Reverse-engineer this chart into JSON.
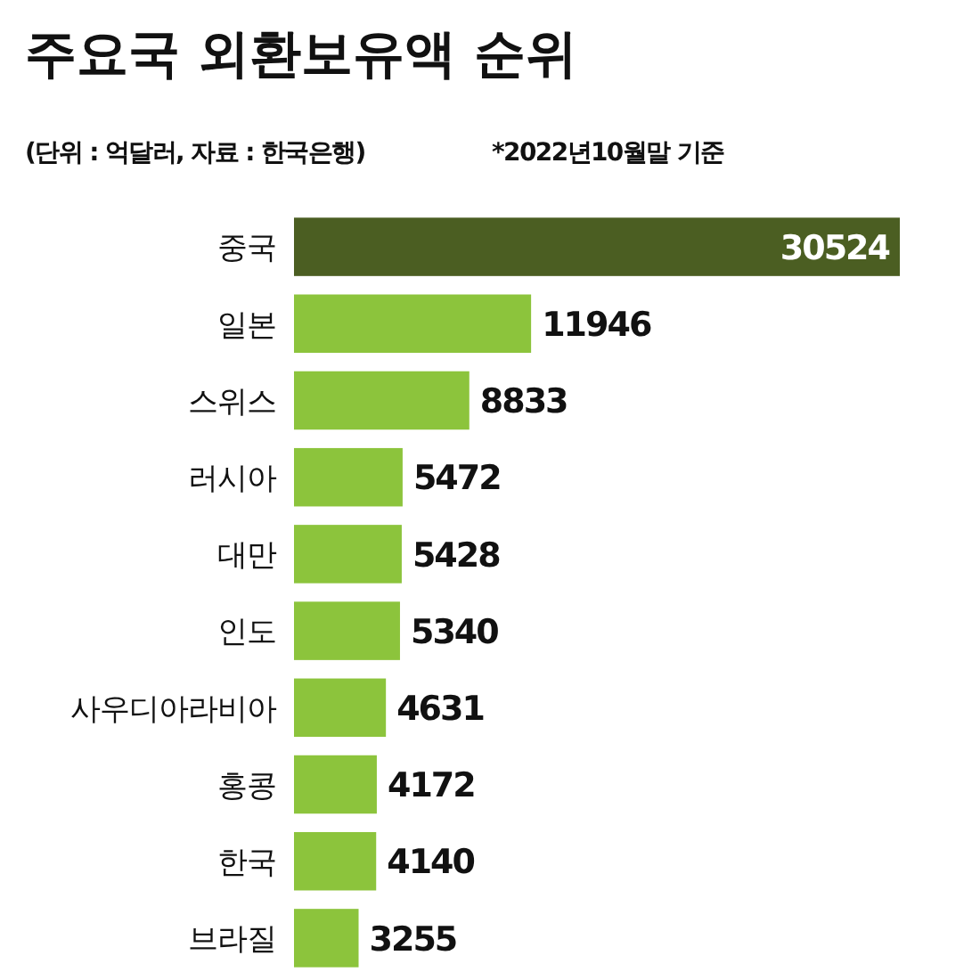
{
  "chart_data": {
    "type": "bar",
    "orientation": "horizontal",
    "title": "주요국 외환보유액 순위",
    "subtitle": "(단위 : 억달러, 자료 : 한국은행)",
    "annotations": [
      "*2022년10월말 기준"
    ],
    "categories": [
      "중국",
      "일본",
      "스위스",
      "러시아",
      "대만",
      "인도",
      "사우디아라비아",
      "홍콩",
      "한국",
      "브라질"
    ],
    "values": [
      30524,
      11946,
      8833,
      5472,
      5428,
      5340,
      4631,
      4172,
      4140,
      3255
    ],
    "colors": [
      "#4b5e22",
      "#8cc43c",
      "#8cc43c",
      "#8cc43c",
      "#8cc43c",
      "#8cc43c",
      "#8cc43c",
      "#8cc43c",
      "#8cc43c",
      "#8cc43c"
    ],
    "data_labels": true
  }
}
